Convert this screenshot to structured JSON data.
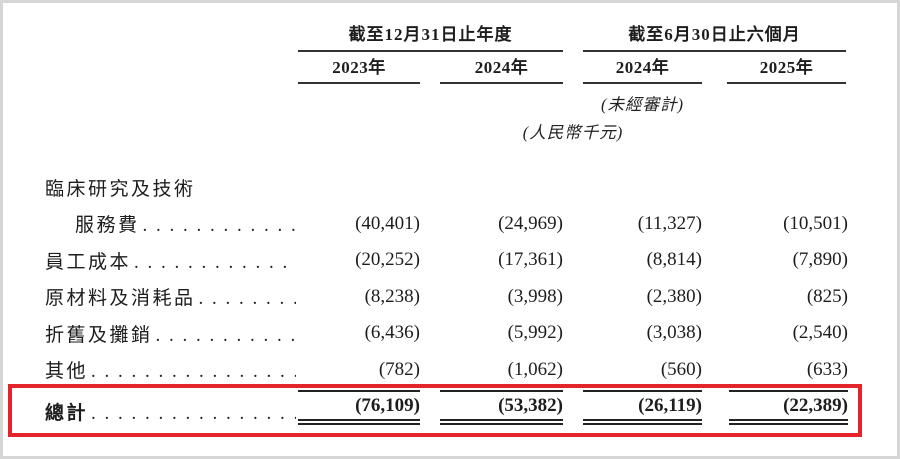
{
  "document": {
    "header": {
      "group1_title": "截至12月31日止年度",
      "group2_title": "截至6月30日止六個月",
      "col_years": [
        "2023年",
        "2024年",
        "2024年",
        "2025年"
      ],
      "unaudited_note": "(未經審計)",
      "currency_note": "(人民幣千元)"
    },
    "table": {
      "leader_dots": ". . . . . . . . . . . . . . . . . . . . . . . . . . . . . . . . . . . . . . . .",
      "rows": [
        {
          "label": "臨床研究及技術",
          "values": [
            "",
            "",
            "",
            ""
          ]
        },
        {
          "label": "服務費",
          "values": [
            "(40,401)",
            "(24,969)",
            "(11,327)",
            "(10,501)"
          ]
        },
        {
          "label": "員工成本",
          "values": [
            "(20,252)",
            "(17,361)",
            "(8,814)",
            "(7,890)"
          ]
        },
        {
          "label": "原材料及消耗品",
          "values": [
            "(8,238)",
            "(3,998)",
            "(2,380)",
            "(825)"
          ]
        },
        {
          "label": "折舊及攤銷",
          "values": [
            "(6,436)",
            "(5,992)",
            "(3,038)",
            "(2,540)"
          ]
        },
        {
          "label": "其他",
          "values": [
            "(782)",
            "(1,062)",
            "(560)",
            "(633)"
          ]
        }
      ],
      "total": {
        "label": "總計",
        "values": [
          "(76,109)",
          "(53,382)",
          "(26,119)",
          "(22,389)"
        ]
      }
    },
    "highlight_color": "#e3242b"
  }
}
